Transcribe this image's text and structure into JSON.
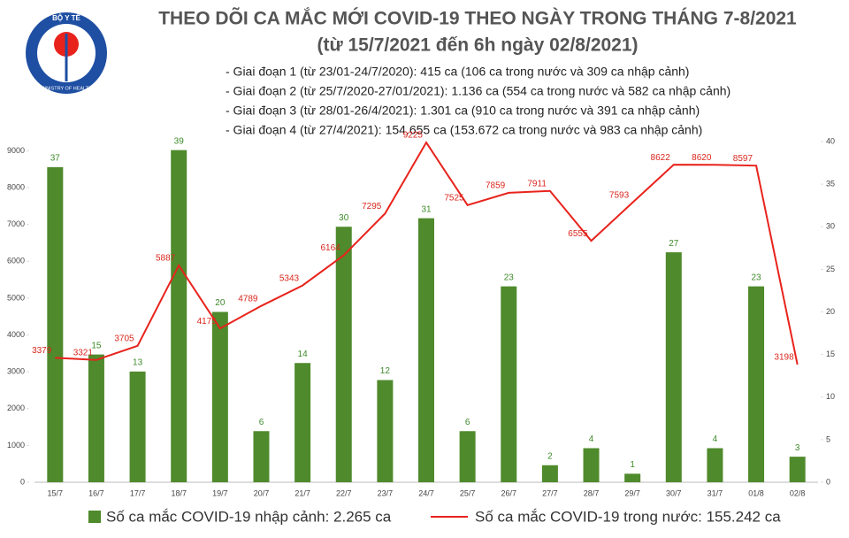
{
  "logo": {
    "top": "BỘ Y TẾ",
    "bottom": "MINISTRY OF HEALTH"
  },
  "chart_data": {
    "type": "bar",
    "title": "THEO DÕI CA MẮC MỚI COVID-19 THEO NGÀY TRONG THÁNG 7-8/2021",
    "subtitle": "(từ 15/7/2021 đến 6h ngày 02/8/2021)",
    "notes": [
      "- Giai đoạn 1 (từ 23/01-24/7/2020): 415 ca (106 ca trong nước và 309 ca nhập cảnh)",
      "- Giai đoạn 2 (từ 25/7/2020-27/01/2021): 1.136 ca (554 ca trong nước và 582 ca nhập cảnh)",
      "- Giai đoạn 3 (từ 28/01-26/4/2021): 1.301 ca (910 ca trong nước và 391 ca nhập cảnh)",
      "- Giai đoạn 4 (từ 27/4/2021): 154.655 ca (153.672 ca trong nước và 983 ca nhập cảnh)"
    ],
    "categories": [
      "15/7",
      "16/7",
      "17/7",
      "18/7",
      "19/7",
      "20/7",
      "21/7",
      "22/7",
      "23/7",
      "24/7",
      "25/7",
      "26/7",
      "27/7",
      "28/7",
      "29/7",
      "30/7",
      "31/7",
      "01/8",
      "02/8"
    ],
    "series": [
      {
        "name": "Số ca mắc COVID-19 nhập cảnh: 2.265 ca",
        "type": "bar",
        "axis": "y2",
        "color": "#4f8a2c",
        "values": [
          37,
          15,
          13,
          39,
          20,
          6,
          14,
          30,
          12,
          31,
          6,
          23,
          2,
          4,
          1,
          27,
          4,
          23,
          3
        ]
      },
      {
        "name": "Số ca mắc COVID-19 trong nước: 155.242 ca",
        "type": "line",
        "color": "#e8231c",
        "values": [
          3379,
          3321,
          3705,
          5887,
          4175,
          4789,
          5343,
          6164,
          7295,
          9225,
          7525,
          7859,
          7911,
          6555,
          7593,
          8622,
          8620,
          8597,
          3198
        ]
      }
    ],
    "ylim": [
      0,
      9250
    ],
    "yticks": [
      0,
      1000,
      2000,
      3000,
      4000,
      5000,
      6000,
      7000,
      8000,
      9000
    ],
    "y2lim": [
      0,
      40
    ],
    "y2ticks": [
      0,
      5,
      10,
      15,
      20,
      25,
      30,
      35,
      40
    ]
  }
}
